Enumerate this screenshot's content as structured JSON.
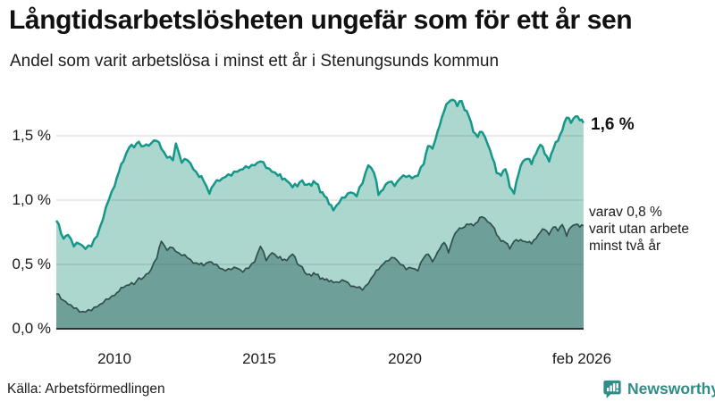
{
  "header": {
    "title": "Långtidsarbetslösheten ungefär som för ett år sen",
    "subtitle": "Andel som varit arbetslösa i minst ett år i Stenungsunds kommun"
  },
  "chart_data": {
    "type": "area",
    "title": "Långtidsarbetslösheten ungefär som för ett år sen",
    "subtitle": "Andel som varit arbetslösa i minst ett år i Stenungsunds kommun",
    "unit": "%",
    "xlim": [
      2008.0,
      2026.083
    ],
    "ylim": [
      0,
      1.9
    ],
    "grid": true,
    "grid_color": "#d8d8d8",
    "baseline_color": "#2f2f2f",
    "y_ticks": [
      {
        "v": 0.0,
        "label": "0,0 %"
      },
      {
        "v": 0.5,
        "label": "0,5 %"
      },
      {
        "v": 1.0,
        "label": "1,0 %"
      },
      {
        "v": 1.5,
        "label": "1,5 %"
      }
    ],
    "x_ticks": [
      {
        "t": 2010,
        "label": "2010"
      },
      {
        "t": 2015,
        "label": "2015"
      },
      {
        "t": 2020,
        "label": "2020"
      },
      {
        "t": 2026.083,
        "label": "feb 2026"
      }
    ],
    "x": [
      2008.0,
      2008.25,
      2008.4,
      2008.6,
      2008.8,
      2009.0,
      2009.2,
      2009.4,
      2009.6,
      2009.8,
      2010.0,
      2010.15,
      2010.3,
      2010.5,
      2010.75,
      2011.0,
      2011.25,
      2011.45,
      2011.6,
      2011.8,
      2012.0,
      2012.1,
      2012.3,
      2012.5,
      2012.7,
      2012.9,
      2013.05,
      2013.25,
      2013.4,
      2013.6,
      2013.8,
      2014.0,
      2014.2,
      2014.4,
      2014.6,
      2014.8,
      2015.0,
      2015.2,
      2015.4,
      2015.6,
      2015.9,
      2016.1,
      2016.35,
      2016.6,
      2016.9,
      2017.2,
      2017.5,
      2017.7,
      2017.9,
      2018.1,
      2018.3,
      2018.5,
      2018.7,
      2018.9,
      2019.05,
      2019.2,
      2019.4,
      2019.6,
      2019.8,
      2020.0,
      2020.2,
      2020.4,
      2020.6,
      2020.75,
      2020.9,
      2021.0,
      2021.15,
      2021.3,
      2021.45,
      2021.6,
      2021.75,
      2021.9,
      2022.0,
      2022.15,
      2022.3,
      2022.45,
      2022.6,
      2022.8,
      2022.95,
      2023.1,
      2023.25,
      2023.4,
      2023.55,
      2023.7,
      2023.85,
      2024.0,
      2024.15,
      2024.3,
      2024.45,
      2024.6,
      2024.75,
      2024.9,
      2025.05,
      2025.2,
      2025.35,
      2025.5,
      2025.65,
      2025.8,
      2025.95,
      2026.08
    ],
    "series": [
      {
        "name": "Andel som varit arbetslösa minst ett år",
        "line_color": "#15988a",
        "fill_color": "#abd7cf",
        "end_value": "1,6 %",
        "values": [
          0.84,
          0.7,
          0.73,
          0.64,
          0.66,
          0.62,
          0.64,
          0.72,
          0.85,
          1.0,
          1.11,
          1.22,
          1.3,
          1.41,
          1.44,
          1.42,
          1.44,
          1.46,
          1.4,
          1.33,
          1.31,
          1.44,
          1.29,
          1.31,
          1.24,
          1.18,
          1.15,
          1.05,
          1.12,
          1.15,
          1.18,
          1.19,
          1.22,
          1.24,
          1.25,
          1.27,
          1.3,
          1.25,
          1.22,
          1.19,
          1.15,
          1.1,
          1.14,
          1.12,
          1.13,
          1.03,
          0.92,
          0.98,
          1.02,
          1.06,
          1.03,
          1.13,
          1.27,
          1.21,
          1.04,
          1.08,
          1.14,
          1.11,
          1.17,
          1.18,
          1.17,
          1.19,
          1.28,
          1.42,
          1.4,
          1.47,
          1.58,
          1.69,
          1.76,
          1.78,
          1.73,
          1.77,
          1.7,
          1.65,
          1.53,
          1.49,
          1.53,
          1.43,
          1.33,
          1.21,
          1.19,
          1.24,
          1.1,
          1.05,
          1.2,
          1.3,
          1.32,
          1.28,
          1.36,
          1.43,
          1.36,
          1.3,
          1.4,
          1.46,
          1.54,
          1.64,
          1.6,
          1.65,
          1.62,
          1.6
        ]
      },
      {
        "name": "varav utan arbete minst två år",
        "line_color": "#31504b",
        "fill_color": "#6f9f99",
        "end_value": "0,8 %",
        "values": [
          0.27,
          0.22,
          0.19,
          0.16,
          0.13,
          0.13,
          0.14,
          0.17,
          0.2,
          0.23,
          0.26,
          0.29,
          0.32,
          0.34,
          0.37,
          0.4,
          0.46,
          0.55,
          0.68,
          0.61,
          0.63,
          0.6,
          0.57,
          0.55,
          0.51,
          0.5,
          0.49,
          0.52,
          0.5,
          0.47,
          0.45,
          0.46,
          0.47,
          0.44,
          0.47,
          0.52,
          0.64,
          0.53,
          0.59,
          0.55,
          0.53,
          0.58,
          0.49,
          0.42,
          0.42,
          0.38,
          0.36,
          0.36,
          0.37,
          0.33,
          0.32,
          0.3,
          0.35,
          0.42,
          0.46,
          0.5,
          0.53,
          0.55,
          0.5,
          0.46,
          0.47,
          0.45,
          0.55,
          0.58,
          0.52,
          0.56,
          0.62,
          0.67,
          0.59,
          0.7,
          0.76,
          0.78,
          0.79,
          0.81,
          0.8,
          0.83,
          0.87,
          0.83,
          0.8,
          0.73,
          0.68,
          0.67,
          0.62,
          0.68,
          0.68,
          0.68,
          0.67,
          0.66,
          0.7,
          0.75,
          0.77,
          0.73,
          0.79,
          0.76,
          0.81,
          0.72,
          0.79,
          0.81,
          0.79,
          0.8
        ]
      }
    ],
    "annotations": {
      "total_end_label": "1,6 %",
      "dark_end_line1": "varav 0,8 %",
      "dark_end_line2": "varit utan arbete",
      "dark_end_line3": "minst två år"
    }
  },
  "footer": {
    "source": "Källa: Arbetsförmedlingen",
    "brand_name": "Newsworthy",
    "brand_color": "#2e8d84"
  }
}
